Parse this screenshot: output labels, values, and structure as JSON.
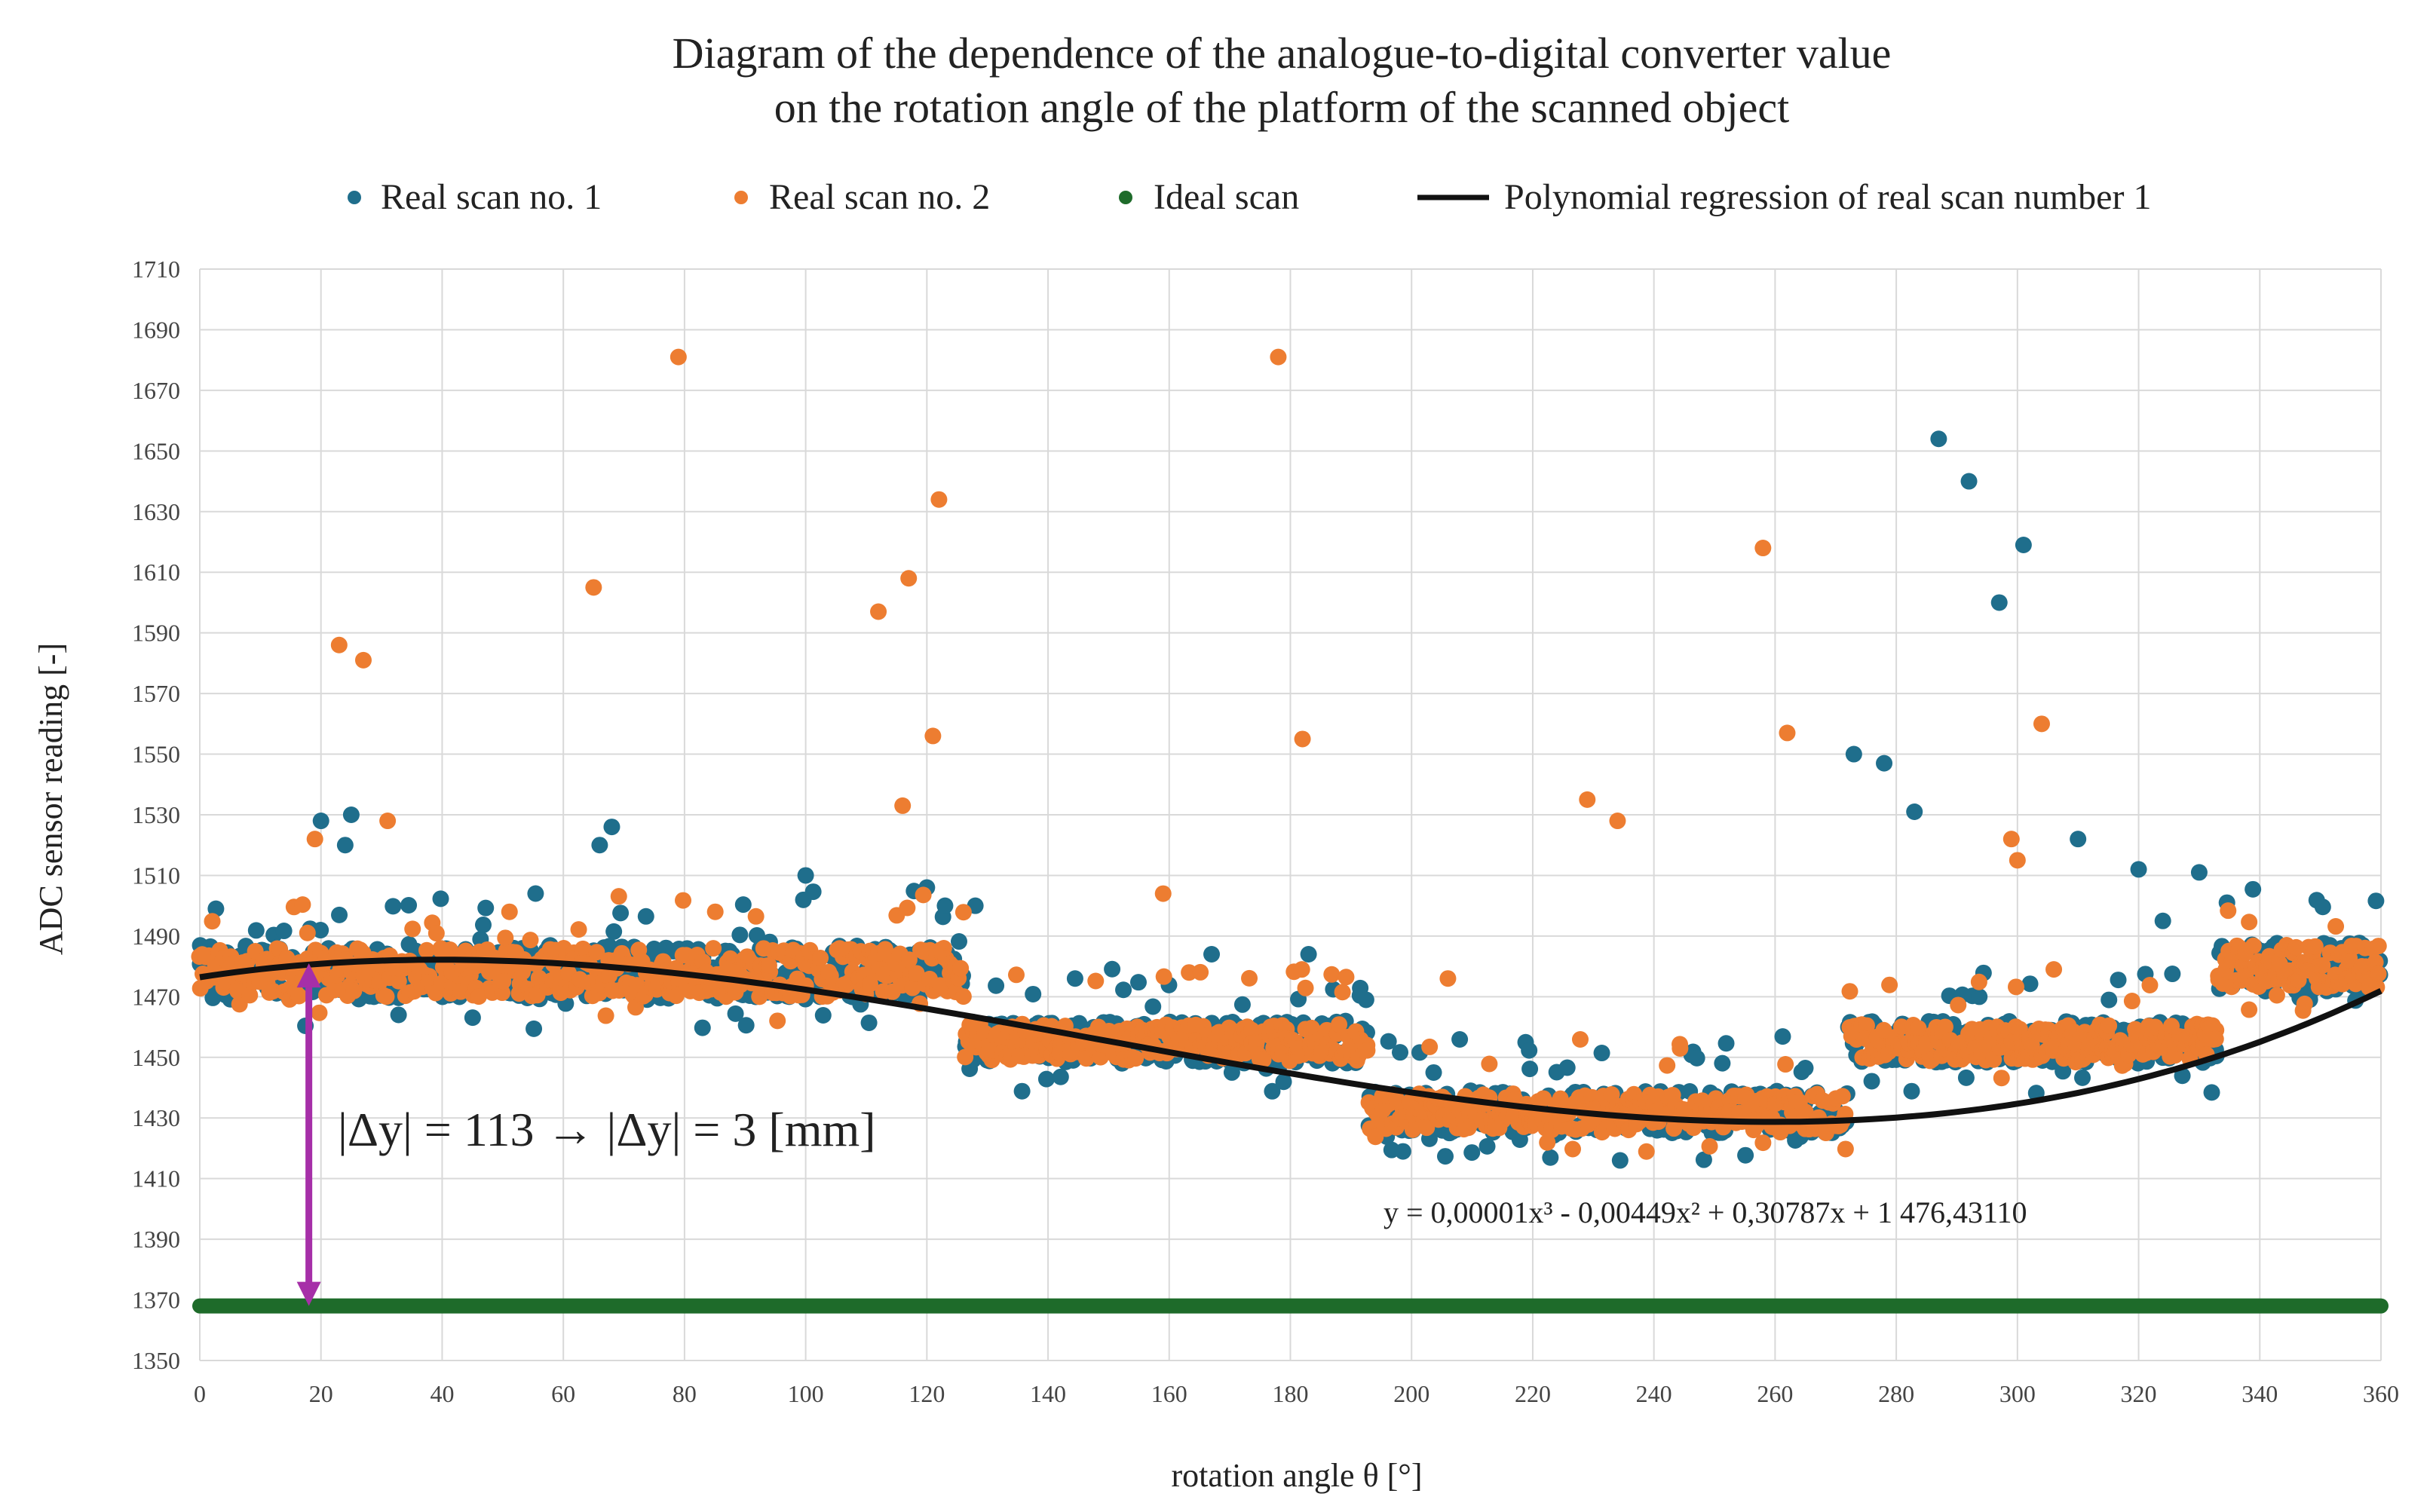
{
  "chart_data": {
    "type": "scatter",
    "title_line1": "Diagram of the dependence of the analogue-to-digital converter value",
    "title_line2": "on the rotation angle of the platform of the scanned object",
    "xlabel": "rotation angle θ [°]",
    "ylabel": "ADC sensor reading [-]",
    "xlim": [
      0,
      360
    ],
    "ylim": [
      1350,
      1710
    ],
    "x_ticks": [
      0,
      20,
      40,
      60,
      80,
      100,
      120,
      140,
      160,
      180,
      200,
      220,
      240,
      260,
      280,
      300,
      320,
      340,
      360
    ],
    "y_ticks": [
      1350,
      1370,
      1390,
      1410,
      1430,
      1450,
      1470,
      1490,
      1510,
      1530,
      1550,
      1570,
      1590,
      1610,
      1630,
      1650,
      1670,
      1690,
      1710
    ],
    "grid": true,
    "legend_position": "top",
    "series": [
      {
        "name": "Real scan  no. 1",
        "kind": "scatter",
        "color": "#1f6e8c"
      },
      {
        "name": "Real scan no. 2",
        "kind": "scatter",
        "color": "#ed7d31"
      },
      {
        "name": "Ideal scan",
        "kind": "line",
        "color": "#1e6b2a",
        "y": 1368
      },
      {
        "name": "Polynomial regression of real scan number 1",
        "kind": "line",
        "color": "#111111",
        "coefficients": {
          "a3": 1e-05,
          "a2": -0.00449,
          "a1": 0.30787,
          "a0": 1476.4311
        }
      }
    ],
    "bands": [
      {
        "x0": 0,
        "x1": 126,
        "center": 1478,
        "spread": 9
      },
      {
        "x0": 126,
        "x1": 193,
        "center": 1455,
        "spread": 7
      },
      {
        "x0": 193,
        "x1": 272,
        "center": 1432,
        "spread": 7
      },
      {
        "x0": 272,
        "x1": 333,
        "center": 1455,
        "spread": 7
      },
      {
        "x0": 333,
        "x1": 360,
        "center": 1480,
        "spread": 8
      }
    ],
    "outliers_scan1": [
      [
        20,
        1528
      ],
      [
        25,
        1530
      ],
      [
        24,
        1520
      ],
      [
        66,
        1520
      ],
      [
        68,
        1526
      ],
      [
        100,
        1510
      ],
      [
        120,
        1506
      ],
      [
        123,
        1500
      ],
      [
        128,
        1500
      ],
      [
        167,
        1484
      ],
      [
        183,
        1484
      ],
      [
        273,
        1550
      ],
      [
        278,
        1547
      ],
      [
        283,
        1531
      ],
      [
        287,
        1654
      ],
      [
        292,
        1640
      ],
      [
        297,
        1600
      ],
      [
        301,
        1619
      ],
      [
        310,
        1522
      ],
      [
        320,
        1512
      ],
      [
        330,
        1511
      ],
      [
        324,
        1495
      ]
    ],
    "outliers_scan2": [
      [
        19,
        1522
      ],
      [
        23,
        1586
      ],
      [
        27,
        1581
      ],
      [
        31,
        1528
      ],
      [
        65,
        1605
      ],
      [
        79,
        1681
      ],
      [
        112,
        1597
      ],
      [
        116,
        1533
      ],
      [
        117,
        1608
      ],
      [
        121,
        1556
      ],
      [
        122,
        1634
      ],
      [
        159,
        1504
      ],
      [
        178,
        1681
      ],
      [
        182,
        1555
      ],
      [
        206,
        1476
      ],
      [
        229,
        1535
      ],
      [
        234,
        1528
      ],
      [
        258,
        1618
      ],
      [
        262,
        1557
      ],
      [
        299,
        1522
      ],
      [
        300,
        1515
      ],
      [
        304,
        1560
      ],
      [
        306,
        1479
      ]
    ],
    "annotation_arrow": {
      "x": 18,
      "y_from": 1368,
      "y_to": 1481,
      "color": "#a62fa8"
    },
    "annotation_text": "|Δy| = 113 → |Δy| = 3 [mm]",
    "equation": "y = 0,00001x³ - 0,00449x² + 0,30787x + 1 476,43110"
  }
}
